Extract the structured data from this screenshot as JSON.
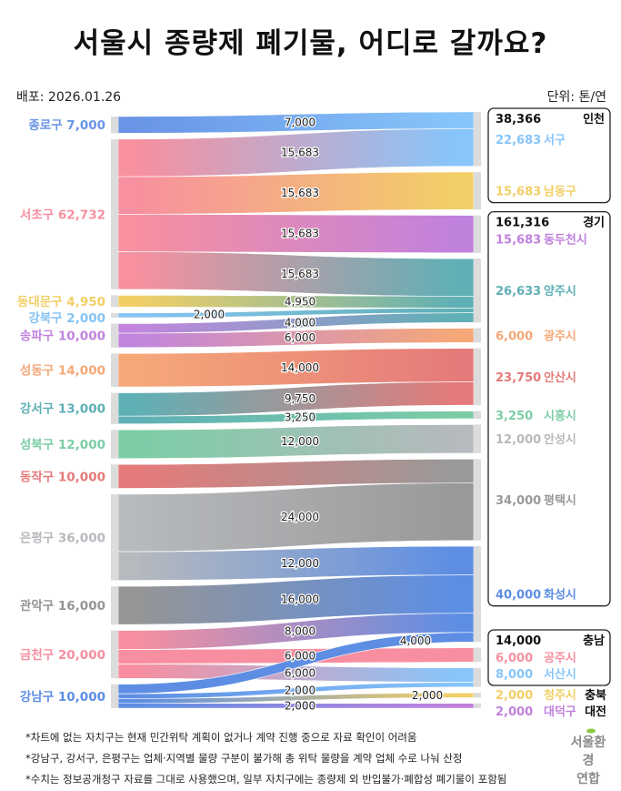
{
  "title": "서울시 종량제 폐기물, 어디로 갈까요?",
  "release": "배포: 2026.01.26",
  "unit": "단위: 톤/연",
  "footnotes": [
    "*차트에 없는 자치구는 현재 민간위탁 계획이 없거나 계약 진행 중으로 자료 확인이 어려움",
    "*강남구, 강서구, 은평구는 업체·지역별 물량 구분이 불가해 총 위탁 물량을 계약 업체 수로 나눠 산정",
    "*수치는 정보공개청구 자료를 그대로 사용했으며, 일부 자치구에는 종량제 외 반입불가·폐합성 폐기물이 포함됨"
  ],
  "logo": [
    "서울환경",
    "연합"
  ],
  "chart_data": {
    "type": "sankey",
    "sources": [
      {
        "name": "종로구",
        "value": "7,000",
        "color": "#6a95e6"
      },
      {
        "name": "서초구",
        "value": "62,732",
        "color": "#f7909f"
      },
      {
        "name": "동대문구",
        "value": "4,950",
        "color": "#f2cf66"
      },
      {
        "name": "강북구",
        "value": "2,000",
        "color": "#86c3f3"
      },
      {
        "name": "송파구",
        "value": "10,000",
        "color": "#c185dd"
      },
      {
        "name": "성동구",
        "value": "14,000",
        "color": "#f5a878"
      },
      {
        "name": "강서구",
        "value": "13,000",
        "color": "#5fb0b5"
      },
      {
        "name": "성북구",
        "value": "12,000",
        "color": "#7ccda6"
      },
      {
        "name": "동작구",
        "value": "10,000",
        "color": "#e57a7a"
      },
      {
        "name": "은평구",
        "value": "36,000",
        "color": "#b6b9bd"
      },
      {
        "name": "관악구",
        "value": "16,000",
        "color": "#959595"
      },
      {
        "name": "금천구",
        "value": "20,000",
        "color": "#f78fa0"
      },
      {
        "name": "강남구",
        "value": "10,000",
        "color": "#5d8ee4"
      }
    ],
    "regions": [
      {
        "name": "인천",
        "total": "38,366",
        "boxed": true
      },
      {
        "name": "경기",
        "total": "161,316",
        "boxed": true
      },
      {
        "name": "충남",
        "total": "14,000",
        "boxed": true
      },
      {
        "name": "충북",
        "total": "",
        "boxed": false
      },
      {
        "name": "대전",
        "total": "",
        "boxed": false
      }
    ],
    "targets": [
      {
        "name": "서구",
        "value": "22,683",
        "region": 0,
        "color": "#87c5fa"
      },
      {
        "name": "남동구",
        "value": "15,683",
        "region": 0,
        "color": "#f2cf66"
      },
      {
        "name": "동두천시",
        "value": "15,683",
        "region": 1,
        "color": "#c081dd"
      },
      {
        "name": "양주시",
        "value": "26,633",
        "region": 1,
        "color": "#5fb0b5"
      },
      {
        "name": "광주시",
        "value": "6,000",
        "region": 1,
        "color": "#f5a878"
      },
      {
        "name": "안산시",
        "value": "23,750",
        "region": 1,
        "color": "#e57a7a"
      },
      {
        "name": "시흥시",
        "value": "3,250",
        "region": 1,
        "color": "#7ccda6"
      },
      {
        "name": "안성시",
        "value": "12,000",
        "region": 1,
        "color": "#b6b9bd"
      },
      {
        "name": "평택시",
        "value": "34,000",
        "region": 1,
        "color": "#999999"
      },
      {
        "name": "화성시",
        "value": "40,000",
        "region": 1,
        "color": "#5d8ee4"
      },
      {
        "name": "공주시",
        "value": "6,000",
        "region": 2,
        "color": "#f78fa0"
      },
      {
        "name": "서산시",
        "value": "8,000",
        "region": 2,
        "color": "#87c5fa"
      },
      {
        "name": "청주시",
        "value": "2,000",
        "region": 3,
        "color": "#f2cf66"
      },
      {
        "name": "대덕구",
        "value": "2,000",
        "region": 4,
        "color": "#c081dd"
      }
    ],
    "links": [
      {
        "source": 0,
        "target": 0,
        "value": 7000,
        "label": "7,000"
      },
      {
        "source": 1,
        "target": 0,
        "value": 15683,
        "label": "15,683"
      },
      {
        "source": 1,
        "target": 1,
        "value": 15683,
        "label": "15,683"
      },
      {
        "source": 1,
        "target": 2,
        "value": 15683,
        "label": "15,683"
      },
      {
        "source": 1,
        "target": 3,
        "value": 15683,
        "label": "15,683"
      },
      {
        "source": 2,
        "target": 3,
        "value": 4950,
        "label": "4,950"
      },
      {
        "source": 3,
        "target": 3,
        "value": 2000,
        "label": "2,000"
      },
      {
        "source": 4,
        "target": 3,
        "value": 4000,
        "label": "4,000"
      },
      {
        "source": 4,
        "target": 4,
        "value": 6000,
        "label": "6,000"
      },
      {
        "source": 5,
        "target": 5,
        "value": 14000,
        "label": "14,000"
      },
      {
        "source": 6,
        "target": 5,
        "value": 9750,
        "label": "9,750"
      },
      {
        "source": 6,
        "target": 6,
        "value": 3250,
        "label": "3,250"
      },
      {
        "source": 7,
        "target": 7,
        "value": 12000,
        "label": "12,000"
      },
      {
        "source": 8,
        "target": 8,
        "value": 10000,
        "label": ""
      },
      {
        "source": 9,
        "target": 8,
        "value": 24000,
        "label": "24,000"
      },
      {
        "source": 9,
        "target": 9,
        "value": 12000,
        "label": "12,000"
      },
      {
        "source": 10,
        "target": 9,
        "value": 16000,
        "label": "16,000"
      },
      {
        "source": 11,
        "target": 9,
        "value": 8000,
        "label": "8,000"
      },
      {
        "source": 11,
        "target": 10,
        "value": 6000,
        "label": "6,000"
      },
      {
        "source": 11,
        "target": 11,
        "value": 6000,
        "label": "6,000"
      },
      {
        "source": 12,
        "target": 9,
        "value": 4000,
        "label": "4,000"
      },
      {
        "source": 12,
        "target": 11,
        "value": 2000,
        "label": "2,000"
      },
      {
        "source": 12,
        "target": 12,
        "value": 2000,
        "label": "2,000"
      },
      {
        "source": 12,
        "target": 13,
        "value": 2000,
        "label": "2,000"
      }
    ]
  }
}
